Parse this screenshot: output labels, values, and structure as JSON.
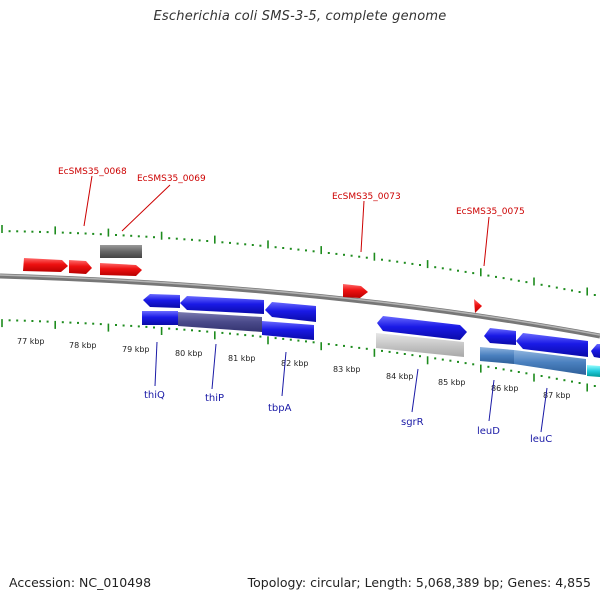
{
  "title": "Escherichia coli SMS-3-5, complete genome",
  "footer": {
    "accession": "Accession: NC_010498",
    "topology": "Topology: circular; Length: 5,068,389 bp; Genes: 4,855"
  },
  "colors": {
    "backbone": "#888888",
    "tick": "#1e8c1e",
    "forward_feature": "#ee1111",
    "reverse_feature": "#1a1ae6",
    "red_label": "#cc0000",
    "blue_label": "#1a1aa6"
  },
  "kbp_labels": [
    "77 kbp",
    "78 kbp",
    "79 kbp",
    "80 kbp",
    "81 kbp",
    "82 kbp",
    "83 kbp",
    "84 kbp",
    "85 kbp",
    "86 kbp",
    "87 kbp"
  ],
  "top_labels": [
    "EcSMS35_0068",
    "EcSMS35_0069",
    "EcSMS35_0073",
    "EcSMS35_0075"
  ],
  "bottom_labels": [
    "thiQ",
    "thiP",
    "tbpA",
    "sgrR",
    "leuD",
    "leuC"
  ]
}
